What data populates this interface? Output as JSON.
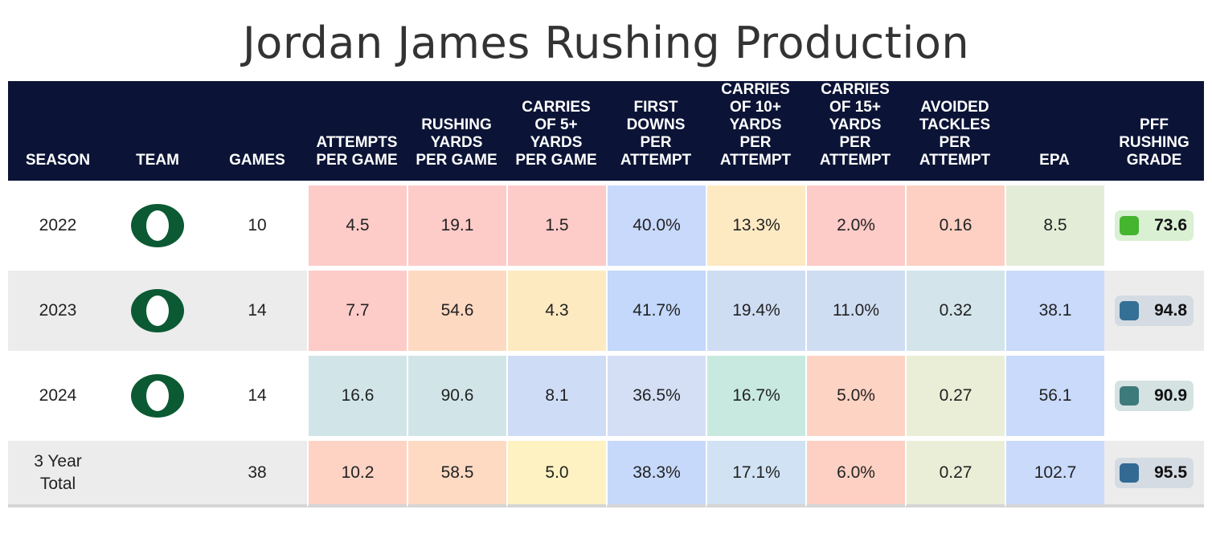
{
  "title": "Jordan James Rushing Production",
  "colors": {
    "header_bg": "#0b1436",
    "team_green": "#0b5a34"
  },
  "chart_data": {
    "type": "table",
    "columns": [
      [
        "SEASON"
      ],
      [
        "TEAM"
      ],
      [
        "GAMES"
      ],
      [
        "ATTEMPTS",
        "PER GAME"
      ],
      [
        "RUSHING",
        "YARDS",
        "PER GAME"
      ],
      [
        "CARRIES",
        "OF 5+",
        "YARDS",
        "PER GAME"
      ],
      [
        "FIRST",
        "DOWNS",
        "PER",
        "ATTEMPT"
      ],
      [
        "CARRIES",
        "OF 10+",
        "YARDS",
        "PER",
        "ATTEMPT"
      ],
      [
        "CARRIES",
        "OF 15+",
        "YARDS",
        "PER",
        "ATTEMPT"
      ],
      [
        "AVOIDED",
        "TACKLES",
        "PER",
        "ATTEMPT"
      ],
      [
        "EPA"
      ],
      [
        "PFF",
        "RUSHING",
        "GRADE"
      ]
    ],
    "rows": [
      {
        "season": [
          "2022"
        ],
        "team": "oregon-o-logo",
        "games": "10",
        "metrics": [
          "4.5",
          "19.1",
          "1.5",
          "40.0%",
          "13.3%",
          "2.0%",
          "0.16",
          "8.5"
        ],
        "metric_colors": [
          "#fdcbc8",
          "#fdcbc8",
          "#fdcbc8",
          "#c8d9fb",
          "#fdeac3",
          "#fdcbc8",
          "#fdd0c3",
          "#e3ecd7"
        ],
        "grade": "73.6",
        "grade_color": "#45b52f",
        "grade_bg": "#d9f0d3"
      },
      {
        "season": [
          "2023"
        ],
        "team": "oregon-o-logo",
        "games": "14",
        "metrics": [
          "7.7",
          "54.6",
          "4.3",
          "41.7%",
          "19.4%",
          "11.0%",
          "0.32",
          "38.1"
        ],
        "metric_colors": [
          "#fdcbc8",
          "#fed9c1",
          "#feeac1",
          "#c3d8fb",
          "#cfddf3",
          "#cfddf3",
          "#d3e4eb",
          "#c9dafb"
        ],
        "grade": "94.8",
        "grade_color": "#346f95",
        "grade_bg": "#d4dbe3"
      },
      {
        "season": [
          "2024"
        ],
        "team": "oregon-o-logo",
        "games": "14",
        "metrics": [
          "16.6",
          "90.6",
          "8.1",
          "36.5%",
          "16.7%",
          "5.0%",
          "0.27",
          "56.1"
        ],
        "metric_colors": [
          "#d1e5e9",
          "#d1e5e9",
          "#cfdcf6",
          "#d4dff5",
          "#c8e9df",
          "#fdd3c4",
          "#eaeed6",
          "#c9dafb"
        ],
        "grade": "90.9",
        "grade_color": "#3c7a7b",
        "grade_bg": "#d5e2e2"
      },
      {
        "season": [
          "3 Year",
          "Total"
        ],
        "team": "",
        "games": "38",
        "metrics": [
          "10.2",
          "58.5",
          "5.0",
          "38.3%",
          "17.1%",
          "6.0%",
          "0.27",
          "102.7"
        ],
        "metric_colors": [
          "#fed3c4",
          "#fedac3",
          "#fef1c2",
          "#c7d9fb",
          "#d0e2f3",
          "#fdd0c3",
          "#eaeed6",
          "#c9dafb"
        ],
        "grade": "95.5",
        "grade_color": "#336a93",
        "grade_bg": "#d4dbe3"
      }
    ]
  }
}
